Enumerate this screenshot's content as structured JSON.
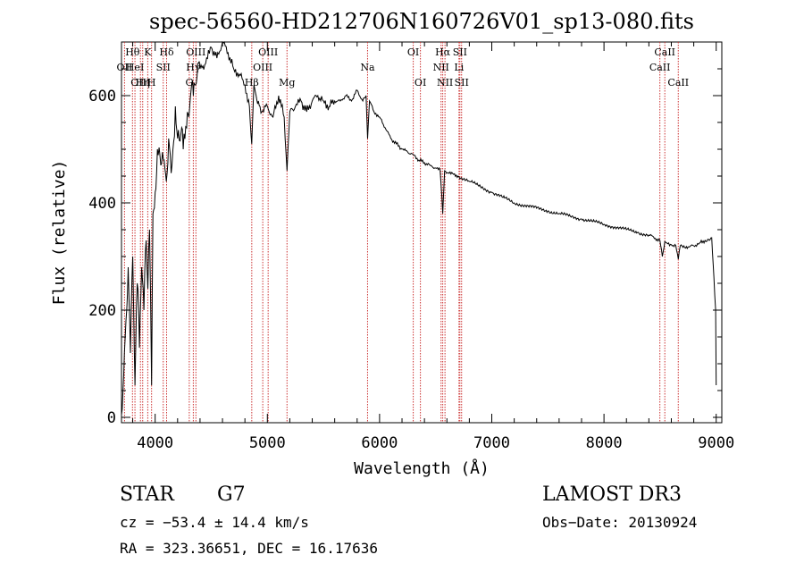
{
  "chart_data": {
    "type": "line",
    "title": "spec-56560-HD212706N160726V01_sp13-080.fits",
    "xlabel": "Wavelength (Å)",
    "ylabel": "Flux (relative)",
    "xlim": [
      3700,
      9050
    ],
    "ylim": [
      -10,
      700
    ],
    "xticks": [
      4000,
      5000,
      6000,
      7000,
      8000,
      9000
    ],
    "yticks": [
      0,
      200,
      400,
      600
    ],
    "series": [
      {
        "name": "flux",
        "x": [
          3700,
          3720,
          3740,
          3760,
          3780,
          3800,
          3820,
          3840,
          3860,
          3880,
          3900,
          3920,
          3935,
          3950,
          3968,
          3980,
          4000,
          4020,
          4050,
          4080,
          4100,
          4120,
          4150,
          4180,
          4200,
          4230,
          4250,
          4280,
          4300,
          4320,
          4340,
          4360,
          4380,
          4400,
          4450,
          4500,
          4550,
          4600,
          4650,
          4700,
          4750,
          4800,
          4840,
          4861,
          4880,
          4900,
          4920,
          4950,
          5000,
          5050,
          5100,
          5150,
          5175,
          5200,
          5250,
          5300,
          5350,
          5400,
          5450,
          5500,
          5550,
          5600,
          5650,
          5700,
          5750,
          5800,
          5850,
          5880,
          5893,
          5910,
          5950,
          6000,
          6050,
          6100,
          6150,
          6200,
          6250,
          6300,
          6350,
          6400,
          6450,
          6500,
          6540,
          6563,
          6580,
          6620,
          6700,
          6800,
          6900,
          7000,
          7100,
          7200,
          7300,
          7400,
          7500,
          7600,
          7700,
          7800,
          7900,
          8000,
          8100,
          8200,
          8300,
          8400,
          8498,
          8520,
          8542,
          8560,
          8600,
          8640,
          8662,
          8680,
          8750,
          8800,
          8850,
          8900,
          8960,
          8980,
          8995,
          9000
        ],
        "values": [
          5,
          80,
          180,
          280,
          120,
          300,
          60,
          250,
          130,
          280,
          200,
          330,
          240,
          350,
          60,
          380,
          420,
          500,
          470,
          480,
          440,
          520,
          470,
          580,
          520,
          530,
          500,
          540,
          560,
          610,
          600,
          620,
          660,
          650,
          660,
          690,
          670,
          700,
          680,
          650,
          640,
          620,
          580,
          510,
          620,
          600,
          590,
          570,
          580,
          560,
          600,
          560,
          460,
          570,
          580,
          590,
          570,
          590,
          600,
          590,
          580,
          590,
          590,
          600,
          590,
          610,
          590,
          600,
          520,
          590,
          570,
          560,
          540,
          520,
          510,
          500,
          495,
          490,
          480,
          475,
          470,
          465,
          460,
          380,
          460,
          455,
          450,
          440,
          430,
          420,
          410,
          400,
          395,
          390,
          385,
          380,
          375,
          370,
          365,
          360,
          355,
          350,
          345,
          340,
          330,
          300,
          328,
          325,
          322,
          320,
          295,
          320,
          318,
          320,
          325,
          330,
          335,
          260,
          200,
          60
        ]
      }
    ],
    "lines": [
      {
        "label": "Hθ",
        "wl": 3798,
        "row": 1
      },
      {
        "label": "K",
        "wl": 3934,
        "row": 1
      },
      {
        "label": "Hδ",
        "wl": 4102,
        "row": 1
      },
      {
        "label": "OII",
        "wl": 3727,
        "row": 2
      },
      {
        "label": "HeI",
        "wl": 3820,
        "row": 2
      },
      {
        "label": "SII",
        "wl": 4072,
        "row": 2
      },
      {
        "label": "OIII",
        "wl": 3869,
        "row": 3
      },
      {
        "label": "Hη",
        "wl": 3889,
        "row": 3
      },
      {
        "label": "H",
        "wl": 3968,
        "row": 3
      },
      {
        "label": "OIII",
        "wl": 4363,
        "row": 1
      },
      {
        "label": "Hγ",
        "wl": 4340,
        "row": 2
      },
      {
        "label": "G",
        "wl": 4304,
        "row": 3
      },
      {
        "label": "OIII",
        "wl": 5007,
        "row": 1
      },
      {
        "label": "OIII",
        "wl": 4959,
        "row": 2
      },
      {
        "label": "Hβ",
        "wl": 4861,
        "row": 3
      },
      {
        "label": "Mg",
        "wl": 5175,
        "row": 3
      },
      {
        "label": "Na",
        "wl": 5893,
        "row": 2
      },
      {
        "label": "OI",
        "wl": 6300,
        "row": 1
      },
      {
        "label": "OI",
        "wl": 6364,
        "row": 3
      },
      {
        "label": "Hα",
        "wl": 6563,
        "row": 1
      },
      {
        "label": "SII",
        "wl": 6716,
        "row": 1
      },
      {
        "label": "NII",
        "wl": 6548,
        "row": 2
      },
      {
        "label": "Li",
        "wl": 6708,
        "row": 2
      },
      {
        "label": "NII",
        "wl": 6583,
        "row": 3
      },
      {
        "label": "SII",
        "wl": 6731,
        "row": 3
      },
      {
        "label": "CaII",
        "wl": 8542,
        "row": 1
      },
      {
        "label": "CaII",
        "wl": 8498,
        "row": 2
      },
      {
        "label": "CaII",
        "wl": 8662,
        "row": 3
      }
    ]
  },
  "info": {
    "class": "STAR",
    "subclass": "G7",
    "survey": "LAMOST DR3",
    "cz": "cz = −53.4 ± 14.4 km/s",
    "obs_date": "Obs−Date: 20130924",
    "radec": "RA = 323.36651, DEC =  16.17636"
  }
}
